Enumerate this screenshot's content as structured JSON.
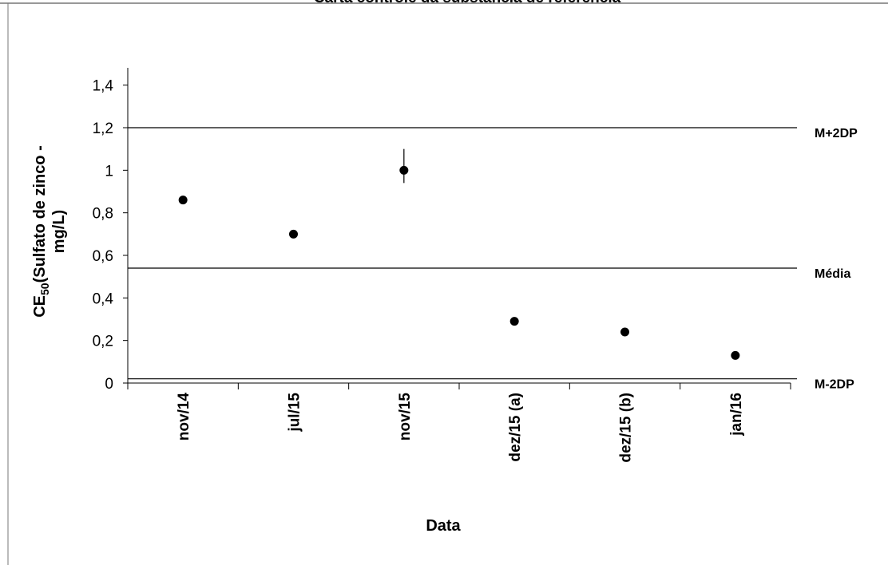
{
  "chart_data": {
    "type": "scatter",
    "title": "Carta controle da substância de referência",
    "categories": [
      "nov/14",
      "jul/15",
      "nov/15",
      "dez/15 (a)",
      "dez/15 (b)",
      "jan/16"
    ],
    "values": [
      0.86,
      0.7,
      1.0,
      0.29,
      0.24,
      0.13
    ],
    "errors_minus": [
      null,
      null,
      0.06,
      null,
      null,
      null
    ],
    "errors_plus": [
      null,
      null,
      0.1,
      null,
      null,
      null
    ],
    "color": "#000000",
    "ylim": [
      0,
      1.5
    ],
    "yticks": [
      0,
      {
        "value": 0.2,
        "label": "0,2"
      },
      {
        "value": 0.4,
        "label": "0,4"
      },
      {
        "value": 0.6,
        "label": "0,6"
      },
      {
        "value": 0.8,
        "label": "0,8"
      },
      1,
      {
        "value": 1.2,
        "label": "1,2"
      },
      {
        "value": 1.4,
        "label": "1,4"
      }
    ],
    "reference_lines": [
      {
        "label": "M+2DP",
        "value": 1.2
      },
      {
        "label": "Média",
        "value": 0.54
      },
      {
        "label": "M-2DP",
        "value": 0.02
      }
    ],
    "xlabel": "Data",
    "ylabel": [
      "CE",
      "50",
      "(Sulfato de zinco -",
      "mg/L)"
    ]
  }
}
